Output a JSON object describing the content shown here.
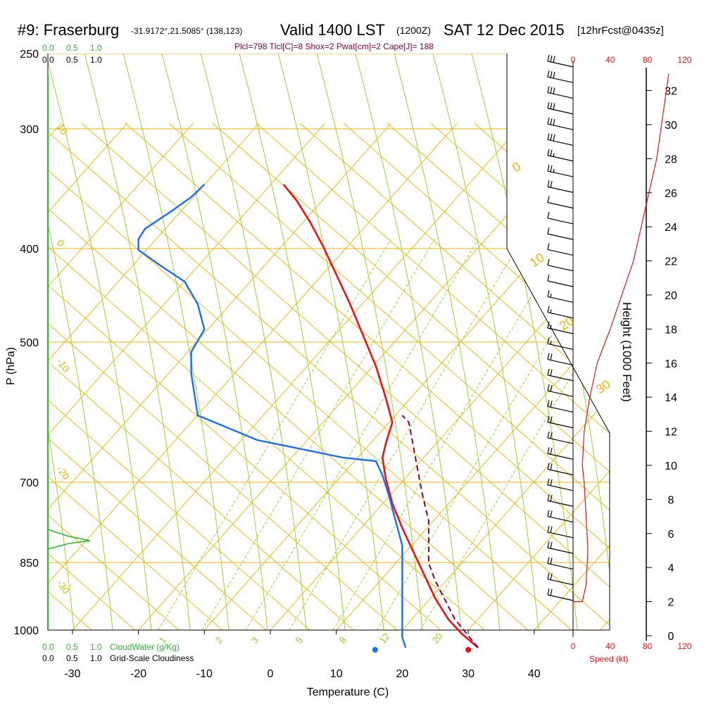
{
  "header": {
    "station": "#9: Fraserburg",
    "coords": "-31.9172°,21.5085° (138,123)",
    "valid": "Valid 1400 LST",
    "zulu": "(1200Z)",
    "date": "SAT 12 Dec 2015",
    "forecast": "[12hrFcst@0435z]",
    "indices": "Plcl=798 Tlcl[C]=8 Shox=2 Pwat[cm]=2 Cape[J]= 188"
  },
  "legend": {
    "cloudwater_top": [
      "0.0",
      "0.5",
      "1.0"
    ],
    "cloudiness_top": [
      "0.0",
      "0.5",
      "1.0"
    ],
    "cloudwater_bottom": [
      "0.0",
      "0.5",
      "1.0"
    ],
    "cloudwater_label": "CloudWater (g/Kg)",
    "cloudiness_bottom": [
      "0.0",
      "0.5",
      "1.0"
    ],
    "cloudiness_label": "Grid-Scale Cloudiness"
  },
  "axes": {
    "xlabel": "Temperature (C)",
    "ylabel": "P (hPa)",
    "height_label": "Height (1000 Feet)",
    "speed_label": "Speed (kt)"
  },
  "colors": {
    "isotherm": "#f0b000",
    "dry_adiabat": "#f0b000",
    "moist_adiabat": "#90cc20",
    "mixing_ratio": "#90cc20",
    "temperature": "#ee1111",
    "dewpoint": "#1a6ff0",
    "parcel": "#800040",
    "cloudwater": "#22bb22",
    "speed": "#ee1111"
  },
  "chart_data": {
    "type": "line",
    "pressure_ticks": [
      "250",
      "300",
      "400",
      "500",
      "700",
      "850",
      "1000"
    ],
    "temperature_ticks": [
      "-30",
      "-20",
      "-10",
      "0",
      "10",
      "20",
      "30",
      "40"
    ],
    "height_ticks": [
      "0",
      "2",
      "4",
      "6",
      "8",
      "10",
      "12",
      "14",
      "16",
      "18",
      "20",
      "22",
      "24",
      "26",
      "28",
      "30",
      "32"
    ],
    "speed_ticks": [
      "0",
      "40",
      "80",
      "120"
    ],
    "dry_adiabat_labels": [
      "10",
      "0",
      "-10",
      "-20",
      "-30"
    ],
    "moist_adiabat_labels": [
      "0",
      "10",
      "20",
      "30"
    ],
    "mixing_ratio_labels": [
      "1",
      "2",
      "3",
      "5",
      "8",
      "12",
      "20"
    ],
    "series": [
      {
        "key": "temperature",
        "points": [
          [
            2,
            262
          ],
          [
            4,
            285
          ],
          [
            6,
            315
          ],
          [
            8,
            350
          ],
          [
            10,
            390
          ],
          [
            12,
            430
          ],
          [
            14,
            475
          ],
          [
            16,
            520
          ],
          [
            17.5,
            565
          ],
          [
            18.5,
            600
          ],
          [
            17.5,
            630
          ],
          [
            17,
            650
          ],
          [
            17.5,
            680
          ],
          [
            18.5,
            715
          ],
          [
            20,
            750
          ],
          [
            22,
            790
          ],
          [
            23.5,
            820
          ],
          [
            25,
            850
          ],
          [
            27,
            880
          ],
          [
            29,
            900
          ],
          [
            31.5,
            920
          ]
        ]
      },
      {
        "key": "dewpoint",
        "points": [
          [
            -10,
            262
          ],
          [
            -12,
            280
          ],
          [
            -15,
            300
          ],
          [
            -19,
            325
          ],
          [
            -20,
            340
          ],
          [
            -20,
            355
          ],
          [
            -17,
            375
          ],
          [
            -13,
            400
          ],
          [
            -11,
            432
          ],
          [
            -10,
            468
          ],
          [
            -12,
            500
          ],
          [
            -12,
            530
          ],
          [
            -11,
            590
          ],
          [
            -2,
            625
          ],
          [
            11,
            650
          ],
          [
            16,
            655
          ],
          [
            17,
            675
          ],
          [
            18,
            705
          ],
          [
            19,
            740
          ],
          [
            20,
            775
          ],
          [
            20,
            810
          ],
          [
            20,
            845
          ],
          [
            20,
            875
          ],
          [
            20,
            905
          ],
          [
            20.5,
            920
          ]
        ]
      },
      {
        "key": "parcel",
        "points": [
          [
            31.5,
            920
          ],
          [
            28,
            880
          ],
          [
            25,
            825
          ],
          [
            24,
            800
          ],
          [
            24,
            770
          ],
          [
            24,
            740
          ],
          [
            23,
            700
          ],
          [
            22,
            650
          ],
          [
            21,
            600
          ],
          [
            20,
            590
          ]
        ]
      }
    ],
    "surface_temperature_point": [
      31.5,
      920
    ],
    "surface_dewpoint_point": [
      22.5,
      920
    ],
    "height_profile": [
      [
        0,
        2
      ],
      [
        10,
        2
      ],
      [
        14,
        3
      ],
      [
        16,
        5
      ],
      [
        14,
        7
      ],
      [
        12,
        9
      ],
      [
        10,
        10
      ],
      [
        12,
        12
      ],
      [
        18,
        14
      ],
      [
        26,
        16
      ],
      [
        40,
        18
      ],
      [
        65,
        22
      ],
      [
        90,
        28
      ],
      [
        103,
        33
      ]
    ],
    "cloudwater_profile": [
      [
        0,
        752
      ],
      [
        0.5,
        762
      ],
      [
        1.0,
        768
      ],
      [
        0.5,
        772
      ],
      [
        0,
        780
      ]
    ],
    "wind_speeds_kt": [
      30,
      30,
      30,
      30,
      30,
      30,
      25,
      25,
      20,
      10,
      10,
      10,
      10,
      10,
      10,
      15,
      15,
      15,
      15,
      20,
      20,
      20,
      20,
      20,
      20,
      20,
      20,
      20,
      20,
      20,
      20,
      20,
      20,
      20,
      20
    ]
  }
}
